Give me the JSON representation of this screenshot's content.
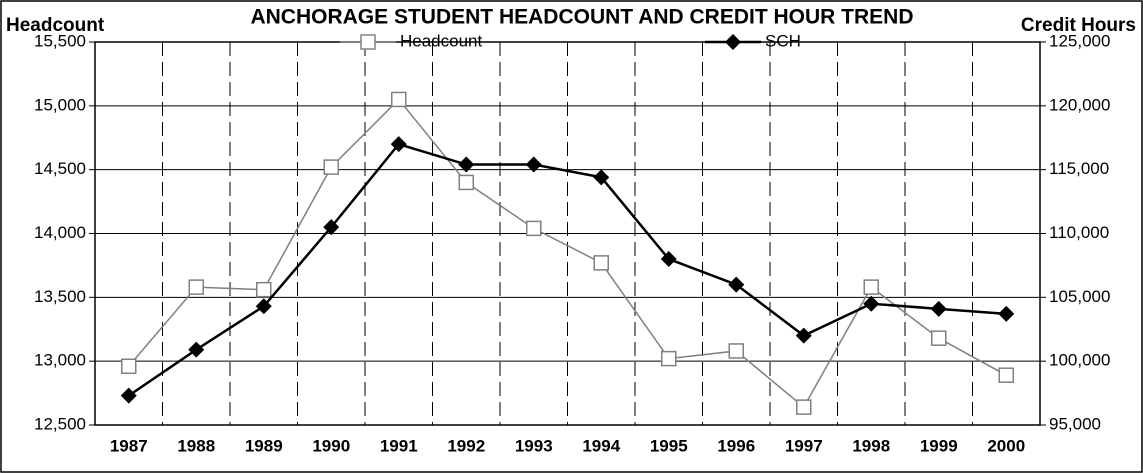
{
  "chart_data": {
    "type": "line",
    "title": "ANCHORAGE STUDENT HEADCOUNT AND CREDIT HOUR TREND",
    "ylabel": "Headcount",
    "y2label": "Credit Hours",
    "categories": [
      "1987",
      "1988",
      "1989",
      "1990",
      "1991",
      "1992",
      "1993",
      "1994",
      "1995",
      "1996",
      "1997",
      "1998",
      "1999",
      "2000"
    ],
    "series": [
      {
        "name": "Headcount",
        "color": "#808080",
        "marker": "square",
        "axis": "y",
        "values": [
          12960,
          13580,
          13560,
          14520,
          15050,
          14400,
          14040,
          13770,
          13020,
          13080,
          12640,
          13580,
          13180,
          12890
        ]
      },
      {
        "name": "SCH",
        "color": "#000000",
        "marker": "diamond",
        "axis": "y2",
        "values": [
          97300,
          100900,
          104300,
          110500,
          117000,
          115400,
          115400,
          114400,
          108000,
          106000,
          102000,
          104500,
          104100,
          103700
        ]
      }
    ],
    "ylim": [
      12500,
      15500
    ],
    "yticks": [
      {
        "value": 12500,
        "label": "12,500"
      },
      {
        "value": 13000,
        "label": "13,000"
      },
      {
        "value": 13500,
        "label": "13,500"
      },
      {
        "value": 14000,
        "label": "14,000"
      },
      {
        "value": 14500,
        "label": "14,500"
      },
      {
        "value": 15000,
        "label": "15,000"
      },
      {
        "value": 15500,
        "label": "15,500"
      }
    ],
    "y2lim": [
      95000,
      125000
    ],
    "y2ticks": [
      {
        "value": 95000,
        "label": "95,000"
      },
      {
        "value": 100000,
        "label": "100,000"
      },
      {
        "value": 105000,
        "label": "105,000"
      },
      {
        "value": 110000,
        "label": "110,000"
      },
      {
        "value": 115000,
        "label": "115,000"
      },
      {
        "value": 120000,
        "label": "120,000"
      },
      {
        "value": 125000,
        "label": "125,000"
      }
    ],
    "grid": true
  }
}
